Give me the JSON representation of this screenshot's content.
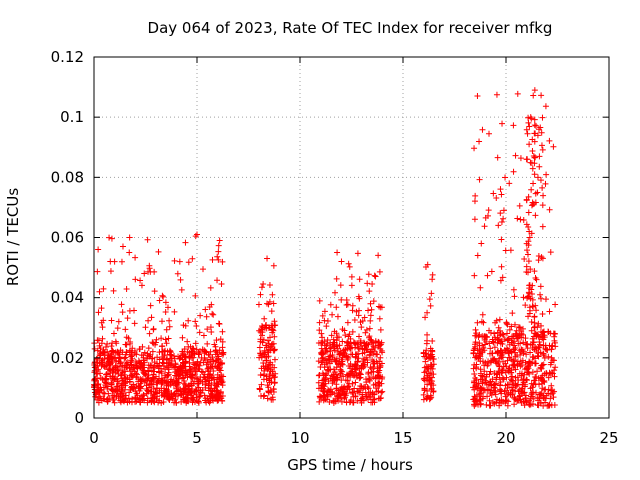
{
  "chart_data": {
    "type": "scatter",
    "title": "Day 064 of 2023, Rate Of TEC Index for receiver mfkg",
    "xlabel": "GPS time / hours",
    "ylabel": "ROTI / TECUs",
    "xlim": [
      0,
      25
    ],
    "ylim": [
      0,
      0.12
    ],
    "xticks": [
      0,
      5,
      10,
      15,
      20,
      25
    ],
    "xtick_labels": [
      "0",
      "5",
      "10",
      "15",
      "20",
      "25"
    ],
    "yticks": [
      0,
      0.02,
      0.04,
      0.06,
      0.08,
      0.1,
      0.12
    ],
    "ytick_labels": [
      "0",
      "0.02",
      "0.04",
      "0.06",
      "0.08",
      "0.1",
      "0.12"
    ],
    "grid": true,
    "marker": "+",
    "color": "#ff0000",
    "series": [
      {
        "name": "ROTI",
        "segments": [
          {
            "x_range": [
              0.0,
              6.3
            ],
            "y_base": [
              0.005,
              0.022
            ],
            "y_peak": 0.061
          },
          {
            "x_range": [
              8.0,
              8.8
            ],
            "y_base": [
              0.006,
              0.03
            ],
            "y_peak": 0.053
          },
          {
            "x_range": [
              10.9,
              14.0
            ],
            "y_base": [
              0.005,
              0.025
            ],
            "y_peak": 0.055
          },
          {
            "x_range": [
              16.0,
              16.5
            ],
            "y_base": [
              0.006,
              0.022
            ],
            "y_peak": 0.051
          },
          {
            "x_range": [
              18.4,
              22.4
            ],
            "y_base": [
              0.004,
              0.028
            ],
            "y_peak": 0.109
          }
        ],
        "notable_points": [
          {
            "x": 0.2,
            "y": 0.056
          },
          {
            "x": 1.0,
            "y": 0.052
          },
          {
            "x": 5.0,
            "y": 0.061
          },
          {
            "x": 6.1,
            "y": 0.059
          },
          {
            "x": 8.4,
            "y": 0.053
          },
          {
            "x": 11.8,
            "y": 0.055
          },
          {
            "x": 16.2,
            "y": 0.051
          },
          {
            "x": 18.8,
            "y": 0.058
          },
          {
            "x": 19.9,
            "y": 0.069
          },
          {
            "x": 20.7,
            "y": 0.066
          },
          {
            "x": 21.0,
            "y": 0.086
          },
          {
            "x": 21.2,
            "y": 0.1
          },
          {
            "x": 21.4,
            "y": 0.109
          },
          {
            "x": 21.6,
            "y": 0.096
          }
        ]
      }
    ]
  }
}
